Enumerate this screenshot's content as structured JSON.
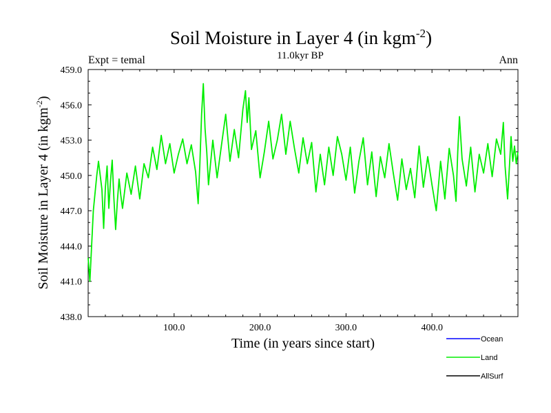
{
  "chart_data": {
    "type": "line",
    "title": "Soil Moisture in Layer 4 (in kgm",
    "title_sup": "-2",
    "title_close": ")",
    "subtitle_left": "Expt = temal",
    "subtitle_center": "11.0kyr BP",
    "subtitle_right": "Ann",
    "xlabel": "Time (in years since start)",
    "ylabel": "Soil Moisture in Layer 4 (in kgm",
    "ylabel_sup": "-2",
    "ylabel_close": ")",
    "xlim": [
      0,
      500
    ],
    "ylim": [
      438,
      459
    ],
    "x_ticks": [
      100,
      200,
      300,
      400
    ],
    "x_tick_labels": [
      "100.0",
      "200.0",
      "300.0",
      "400.0"
    ],
    "y_ticks": [
      438,
      441,
      444,
      447,
      450,
      453,
      456,
      459
    ],
    "y_tick_labels": [
      "438.0",
      "441.0",
      "444.0",
      "447.0",
      "450.0",
      "453.0",
      "456.0",
      "459.0"
    ],
    "legend": [
      {
        "name": "Ocean",
        "color": "#0000ff"
      },
      {
        "name": "Land",
        "color": "#00ee00"
      },
      {
        "name": "AllSurf",
        "color": "#000000"
      }
    ],
    "series": [
      {
        "name": "Land",
        "color": "#00ee00",
        "x": [
          0,
          2,
          4,
          6,
          8,
          10,
          12,
          14,
          16,
          18,
          20,
          22,
          24,
          26,
          28,
          30,
          32,
          34,
          36,
          38,
          40,
          45,
          50,
          55,
          60,
          65,
          70,
          75,
          80,
          85,
          90,
          95,
          100,
          105,
          110,
          115,
          120,
          125,
          128,
          130,
          132,
          134,
          136,
          138,
          140,
          145,
          150,
          155,
          160,
          165,
          170,
          175,
          180,
          183,
          185,
          187,
          190,
          195,
          200,
          205,
          210,
          215,
          220,
          225,
          230,
          235,
          240,
          245,
          250,
          255,
          260,
          265,
          270,
          275,
          280,
          285,
          290,
          295,
          300,
          305,
          310,
          315,
          320,
          325,
          330,
          335,
          340,
          345,
          350,
          355,
          360,
          365,
          370,
          375,
          380,
          385,
          390,
          395,
          400,
          405,
          410,
          415,
          420,
          425,
          428,
          430,
          432,
          435,
          440,
          445,
          450,
          455,
          460,
          465,
          470,
          475,
          480,
          483,
          485,
          488,
          490,
          492,
          494,
          496,
          498,
          500
        ],
        "values": [
          443.0,
          441.0,
          444.0,
          447.0,
          448.5,
          450.0,
          451.2,
          450.0,
          448.8,
          445.5,
          449.0,
          450.8,
          447.2,
          449.5,
          451.3,
          448.0,
          445.4,
          447.8,
          449.7,
          448.3,
          447.2,
          450.2,
          448.4,
          450.8,
          448.0,
          451.0,
          449.8,
          452.4,
          450.5,
          453.4,
          451.0,
          452.7,
          450.2,
          451.8,
          453.1,
          451.0,
          452.6,
          450.3,
          447.6,
          451.0,
          455.2,
          457.8,
          454.0,
          452.0,
          449.2,
          453.0,
          449.8,
          452.5,
          455.2,
          451.2,
          453.9,
          451.5,
          455.6,
          457.2,
          454.5,
          456.6,
          452.2,
          453.8,
          449.8,
          452.0,
          454.6,
          451.4,
          453.0,
          455.2,
          451.8,
          454.6,
          452.3,
          450.2,
          453.2,
          451.0,
          452.8,
          448.6,
          451.8,
          449.2,
          452.4,
          450.0,
          453.3,
          451.8,
          449.6,
          452.4,
          448.5,
          451.2,
          453.2,
          449.2,
          452.0,
          448.2,
          451.6,
          449.8,
          452.7,
          450.2,
          447.9,
          451.4,
          448.8,
          450.6,
          448.1,
          452.5,
          449.0,
          451.6,
          449.2,
          447.0,
          451.2,
          448.0,
          452.3,
          450.0,
          447.8,
          452.0,
          455.0,
          451.4,
          449.1,
          452.4,
          448.6,
          451.8,
          450.2,
          452.7,
          449.9,
          453.1,
          451.8,
          454.5,
          450.8,
          448.0,
          450.6,
          453.3,
          451.2,
          452.5,
          451.0,
          452.0
        ]
      }
    ]
  }
}
